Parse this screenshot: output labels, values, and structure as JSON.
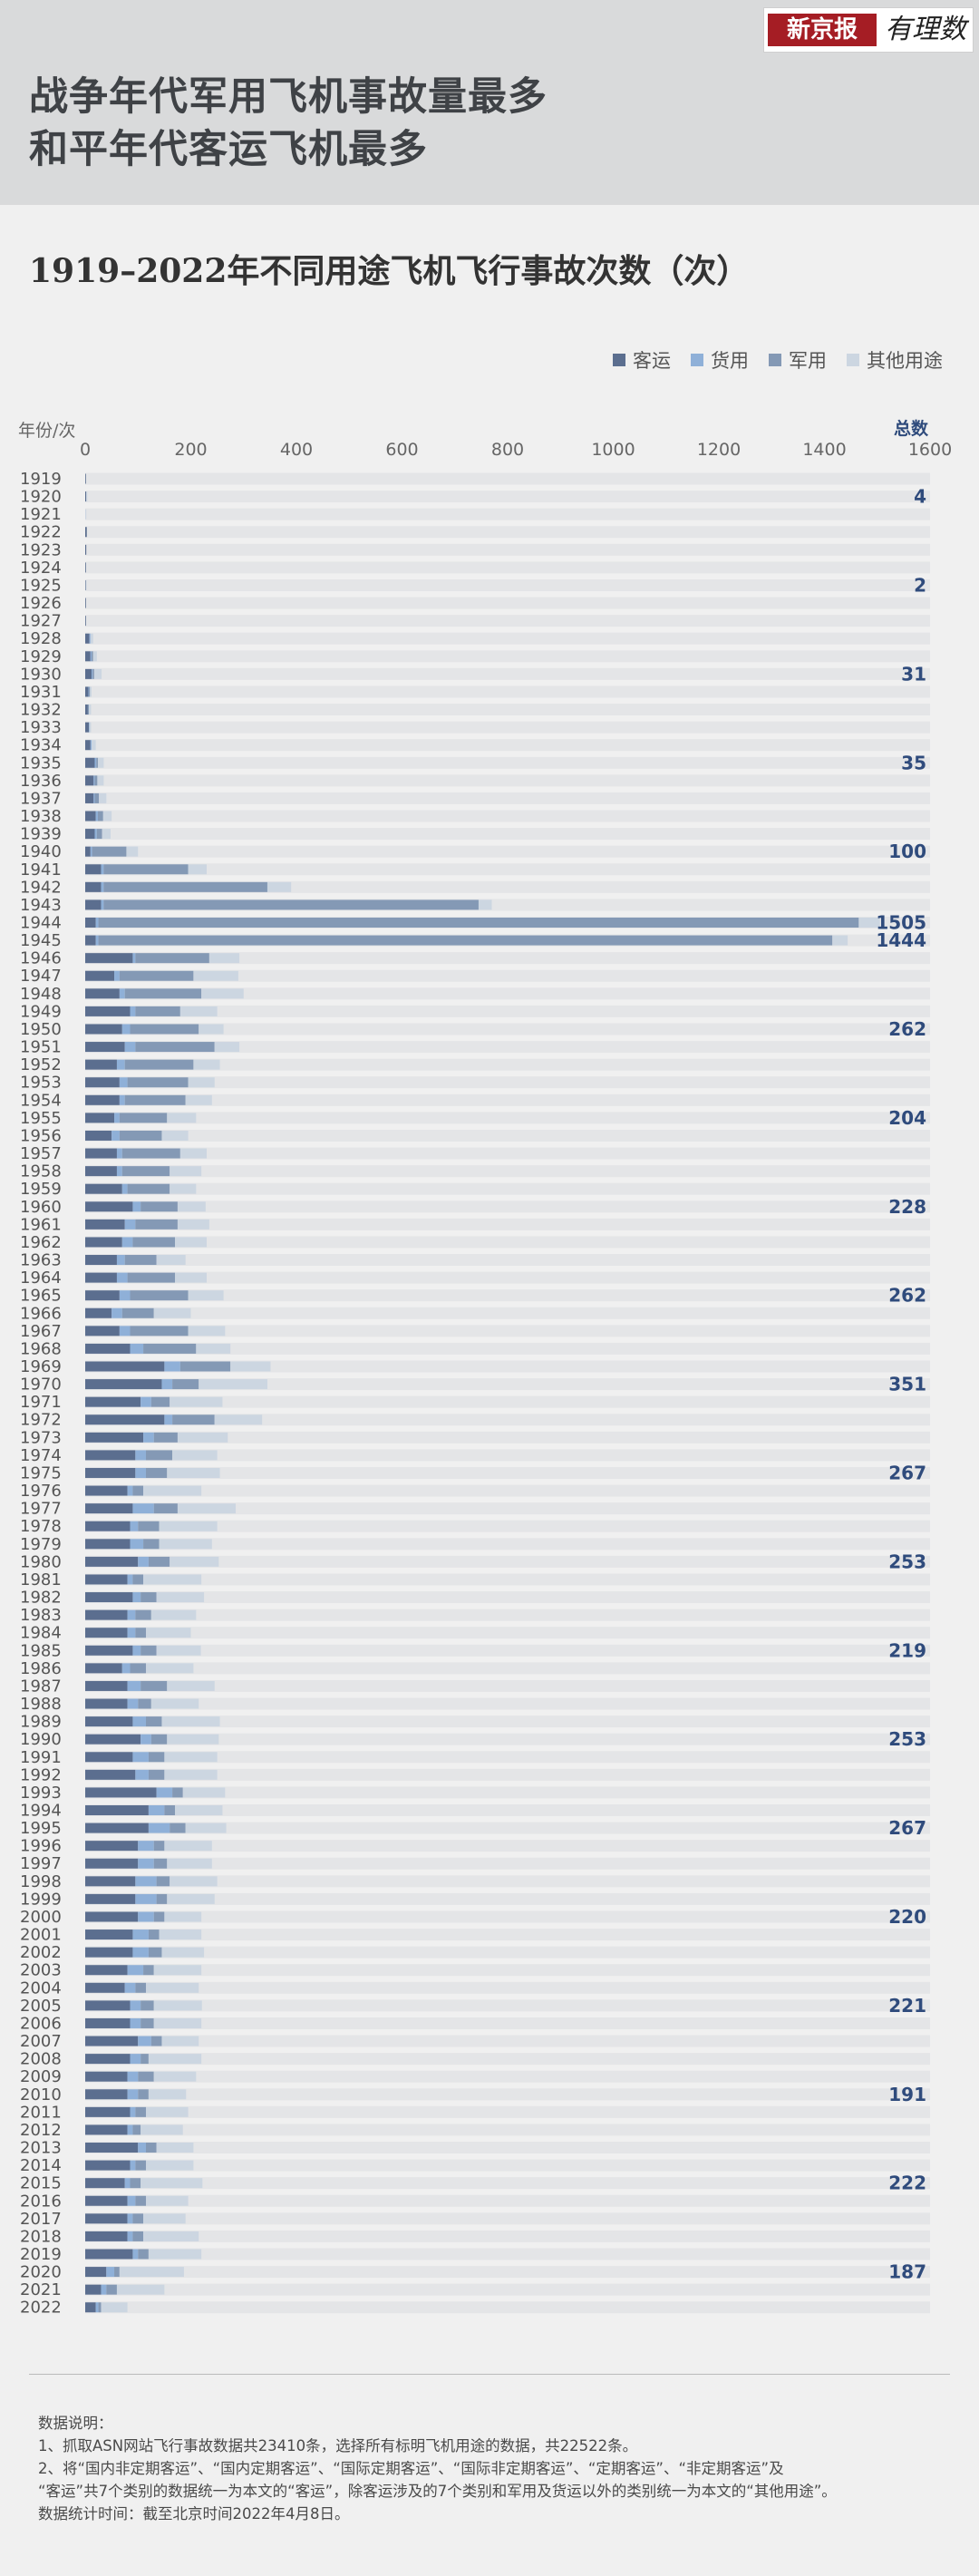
{
  "header": {
    "headline_line1": "战争年代军用飞机事故量最多",
    "headline_line2": "和平年代客运飞机最多",
    "logo_text_red": "新京报",
    "logo_text_script": "有理数"
  },
  "colors": {
    "header_bg": "#d9dadb",
    "background": "#f0f0f0",
    "row_track": "#e4e5e7",
    "total_label": "#2f4b7c"
  },
  "chart_data": {
    "type": "bar",
    "orientation": "horizontal",
    "stacked": true,
    "title": "1919–2022年不同用途飞机飞行事故次数（次）",
    "ylabel": "年份/次",
    "total_label": "总数",
    "xlim": [
      0,
      1600
    ],
    "xticks": [
      0,
      200,
      400,
      600,
      800,
      1000,
      1200,
      1400,
      1600
    ],
    "legend_position": "top-right",
    "categories": [
      "1919",
      "1920",
      "1921",
      "1922",
      "1923",
      "1924",
      "1925",
      "1926",
      "1927",
      "1928",
      "1929",
      "1930",
      "1931",
      "1932",
      "1933",
      "1934",
      "1935",
      "1936",
      "1937",
      "1938",
      "1939",
      "1940",
      "1941",
      "1942",
      "1943",
      "1944",
      "1945",
      "1946",
      "1947",
      "1948",
      "1949",
      "1950",
      "1951",
      "1952",
      "1953",
      "1954",
      "1955",
      "1956",
      "1957",
      "1958",
      "1959",
      "1960",
      "1961",
      "1962",
      "1963",
      "1964",
      "1965",
      "1966",
      "1967",
      "1968",
      "1969",
      "1970",
      "1971",
      "1972",
      "1973",
      "1974",
      "1975",
      "1976",
      "1977",
      "1978",
      "1979",
      "1980",
      "1981",
      "1982",
      "1983",
      "1984",
      "1985",
      "1986",
      "1987",
      "1988",
      "1989",
      "1990",
      "1991",
      "1992",
      "1993",
      "1994",
      "1995",
      "1996",
      "1997",
      "1998",
      "1999",
      "2000",
      "2001",
      "2002",
      "2003",
      "2004",
      "2005",
      "2006",
      "2007",
      "2008",
      "2009",
      "2010",
      "2011",
      "2012",
      "2013",
      "2014",
      "2015",
      "2016",
      "2017",
      "2018",
      "2019",
      "2020",
      "2021",
      "2022"
    ],
    "series": [
      {
        "name": "客运",
        "color": "#5b6e8f",
        "values": [
          1,
          2,
          0,
          3,
          2,
          1,
          1,
          1,
          1,
          8,
          10,
          12,
          6,
          5,
          7,
          10,
          18,
          16,
          16,
          20,
          18,
          10,
          30,
          30,
          30,
          20,
          20,
          90,
          55,
          65,
          85,
          70,
          75,
          60,
          65,
          65,
          55,
          50,
          60,
          60,
          70,
          90,
          75,
          70,
          60,
          60,
          65,
          50,
          65,
          85,
          150,
          145,
          105,
          150,
          110,
          95,
          95,
          80,
          90,
          85,
          85,
          100,
          80,
          90,
          80,
          80,
          90,
          70,
          80,
          80,
          90,
          105,
          90,
          95,
          135,
          120,
          120,
          100,
          100,
          95,
          95,
          100,
          90,
          90,
          80,
          75,
          85,
          85,
          100,
          85,
          80,
          80,
          85,
          80,
          100,
          85,
          75,
          80,
          80,
          80,
          90,
          40,
          30,
          20
        ]
      },
      {
        "name": "货用",
        "color": "#8fb0d8",
        "values": [
          0,
          0,
          0,
          0,
          0,
          0,
          0,
          0,
          0,
          2,
          2,
          2,
          1,
          0,
          1,
          2,
          3,
          2,
          2,
          4,
          4,
          3,
          5,
          5,
          5,
          5,
          5,
          5,
          10,
          10,
          10,
          15,
          20,
          15,
          15,
          10,
          10,
          15,
          10,
          10,
          10,
          15,
          20,
          20,
          15,
          20,
          20,
          20,
          20,
          25,
          30,
          20,
          20,
          15,
          20,
          20,
          20,
          10,
          40,
          15,
          25,
          20,
          10,
          15,
          15,
          15,
          15,
          15,
          25,
          20,
          25,
          20,
          30,
          25,
          30,
          30,
          40,
          30,
          30,
          40,
          40,
          30,
          30,
          30,
          30,
          20,
          20,
          20,
          25,
          20,
          20,
          20,
          10,
          10,
          15,
          10,
          10,
          15,
          10,
          10,
          10,
          15,
          10,
          5
        ]
      },
      {
        "name": "军用",
        "color": "#8499b5",
        "values": [
          0,
          0,
          0,
          0,
          0,
          0,
          0,
          0,
          0,
          0,
          3,
          3,
          2,
          2,
          0,
          0,
          3,
          5,
          8,
          10,
          10,
          65,
          160,
          310,
          710,
          1440,
          1390,
          140,
          140,
          145,
          85,
          130,
          150,
          130,
          115,
          115,
          90,
          80,
          110,
          90,
          80,
          70,
          80,
          80,
          60,
          90,
          110,
          60,
          110,
          100,
          95,
          50,
          35,
          80,
          45,
          50,
          40,
          20,
          45,
          40,
          30,
          40,
          20,
          30,
          30,
          20,
          30,
          30,
          50,
          25,
          30,
          30,
          30,
          30,
          20,
          20,
          30,
          20,
          25,
          25,
          20,
          20,
          20,
          25,
          20,
          20,
          25,
          25,
          20,
          15,
          30,
          20,
          20,
          15,
          20,
          20,
          20,
          20,
          20,
          20,
          20,
          10,
          20,
          5
        ]
      },
      {
        "name": "其他用途",
        "color": "#ccd6e1",
        "values": [
          0,
          2,
          2,
          0,
          0,
          0,
          1,
          0,
          0,
          5,
          7,
          14,
          3,
          4,
          3,
          8,
          11,
          12,
          14,
          16,
          16,
          22,
          35,
          45,
          25,
          40,
          29,
          57,
          85,
          80,
          70,
          47,
          47,
          50,
          50,
          50,
          55,
          50,
          50,
          60,
          50,
          53,
          60,
          60,
          55,
          60,
          67,
          70,
          70,
          65,
          76,
          130,
          100,
          90,
          95,
          85,
          100,
          110,
          110,
          110,
          100,
          93,
          110,
          90,
          85,
          85,
          84,
          90,
          90,
          90,
          110,
          98,
          100,
          100,
          80,
          90,
          77,
          90,
          85,
          90,
          90,
          70,
          80,
          80,
          90,
          100,
          91,
          90,
          70,
          100,
          80,
          71,
          80,
          80,
          70,
          90,
          117,
          80,
          80,
          105,
          100,
          122,
          90,
          50
        ]
      }
    ],
    "annotated_totals": [
      {
        "year": "1920",
        "total": 4
      },
      {
        "year": "1925",
        "total": 2
      },
      {
        "year": "1930",
        "total": 31
      },
      {
        "year": "1935",
        "total": 35
      },
      {
        "year": "1940",
        "total": 100
      },
      {
        "year": "1944",
        "total": 1505
      },
      {
        "year": "1945",
        "total": 1444
      },
      {
        "year": "1950",
        "total": 262
      },
      {
        "year": "1955",
        "total": 204
      },
      {
        "year": "1960",
        "total": 228
      },
      {
        "year": "1965",
        "total": 262
      },
      {
        "year": "1970",
        "total": 351
      },
      {
        "year": "1975",
        "total": 267
      },
      {
        "year": "1980",
        "total": 253
      },
      {
        "year": "1985",
        "total": 219
      },
      {
        "year": "1990",
        "total": 253
      },
      {
        "year": "1995",
        "total": 267
      },
      {
        "year": "2000",
        "total": 220
      },
      {
        "year": "2005",
        "total": 221
      },
      {
        "year": "2010",
        "total": 191
      },
      {
        "year": "2015",
        "total": 222
      },
      {
        "year": "2020",
        "total": 187
      }
    ]
  },
  "notes": {
    "heading": "数据说明：",
    "line1": "1、抓取ASN网站飞行事故数据共23410条，选择所有标明飞机用途的数据，共22522条。",
    "line2": "2、将“国内非定期客运”、“国内定期客运”、“国际定期客运”、“国际非定期客运”、“定期客运”、“非定期客运”及",
    "line3": "“客运”共7个类别的数据统一为本文的“客运”，除客运涉及的7个类别和军用及货运以外的类别统一为本文的“其他用途”。",
    "line4": "数据统计时间：截至北京时间2022年4月8日。"
  }
}
